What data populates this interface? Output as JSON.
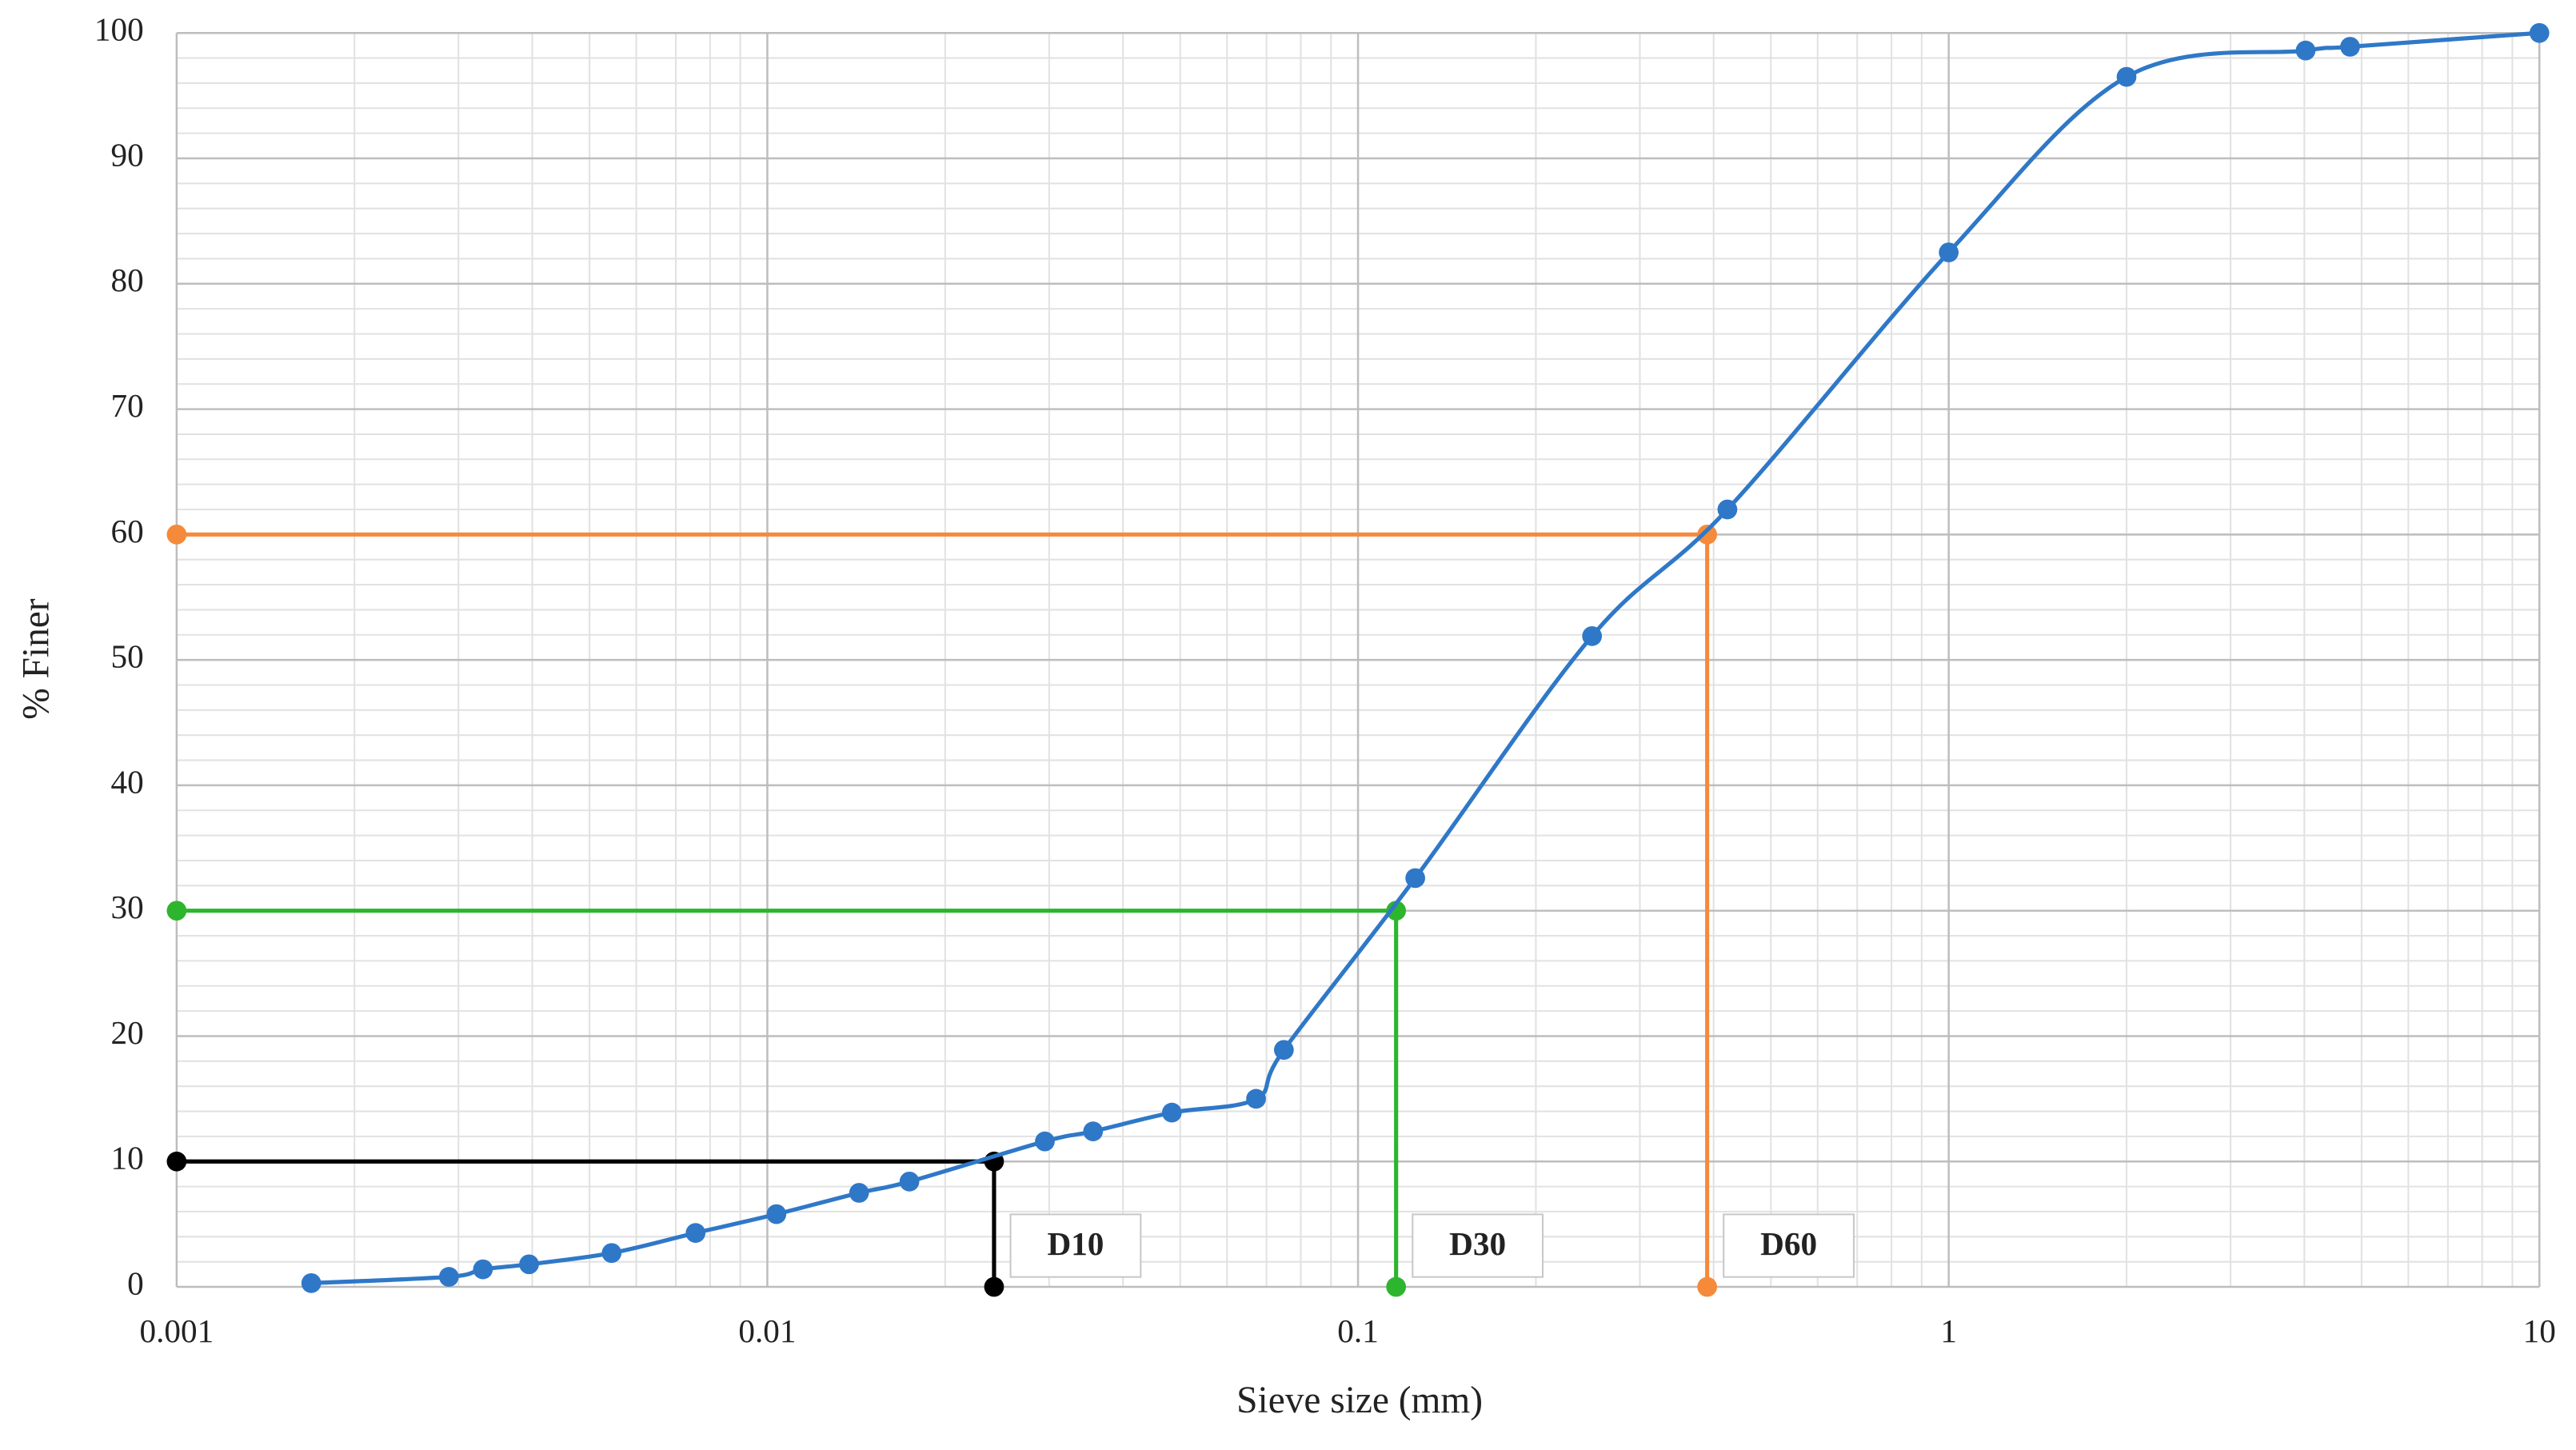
{
  "chart_data": {
    "type": "line",
    "x_label": "Sieve size (mm)",
    "y_label": "% Finer",
    "xscale": "log",
    "xlim": [
      0.001,
      10
    ],
    "ylim": [
      0,
      100
    ],
    "xticks": [
      0.001,
      0.01,
      0.1,
      1,
      10
    ],
    "yticks": [
      0,
      10,
      20,
      30,
      40,
      50,
      60,
      70,
      80,
      90,
      100
    ],
    "grid": true,
    "minor_grid": true,
    "series": [
      {
        "color": "#2f78c8",
        "x": [
          0.00169,
          0.00289,
          0.0033,
          0.00395,
          0.00545,
          0.00756,
          0.01036,
          0.0143,
          0.0174,
          0.0295,
          0.0356,
          0.0484,
          0.0672,
          0.0749,
          0.125,
          0.249,
          0.422,
          1,
          2,
          4.02,
          4.78,
          10
        ],
        "values": [
          0.3,
          0.8,
          1.4,
          1.8,
          2.7,
          4.3,
          5.8,
          7.5,
          8.4,
          11.6,
          12.4,
          13.9,
          15.0,
          18.9,
          32.6,
          51.9,
          62.0,
          82.5,
          96.5,
          98.6,
          98.9,
          100
        ]
      }
    ],
    "reference_lines": [
      {
        "label": "D10",
        "x": 0.0242,
        "y": 10,
        "color": "#000000"
      },
      {
        "label": "D30",
        "x": 0.116,
        "y": 30,
        "color": "#2db52d"
      },
      {
        "label": "D60",
        "x": 0.39,
        "y": 60,
        "color": "#f58a3b"
      }
    ]
  }
}
